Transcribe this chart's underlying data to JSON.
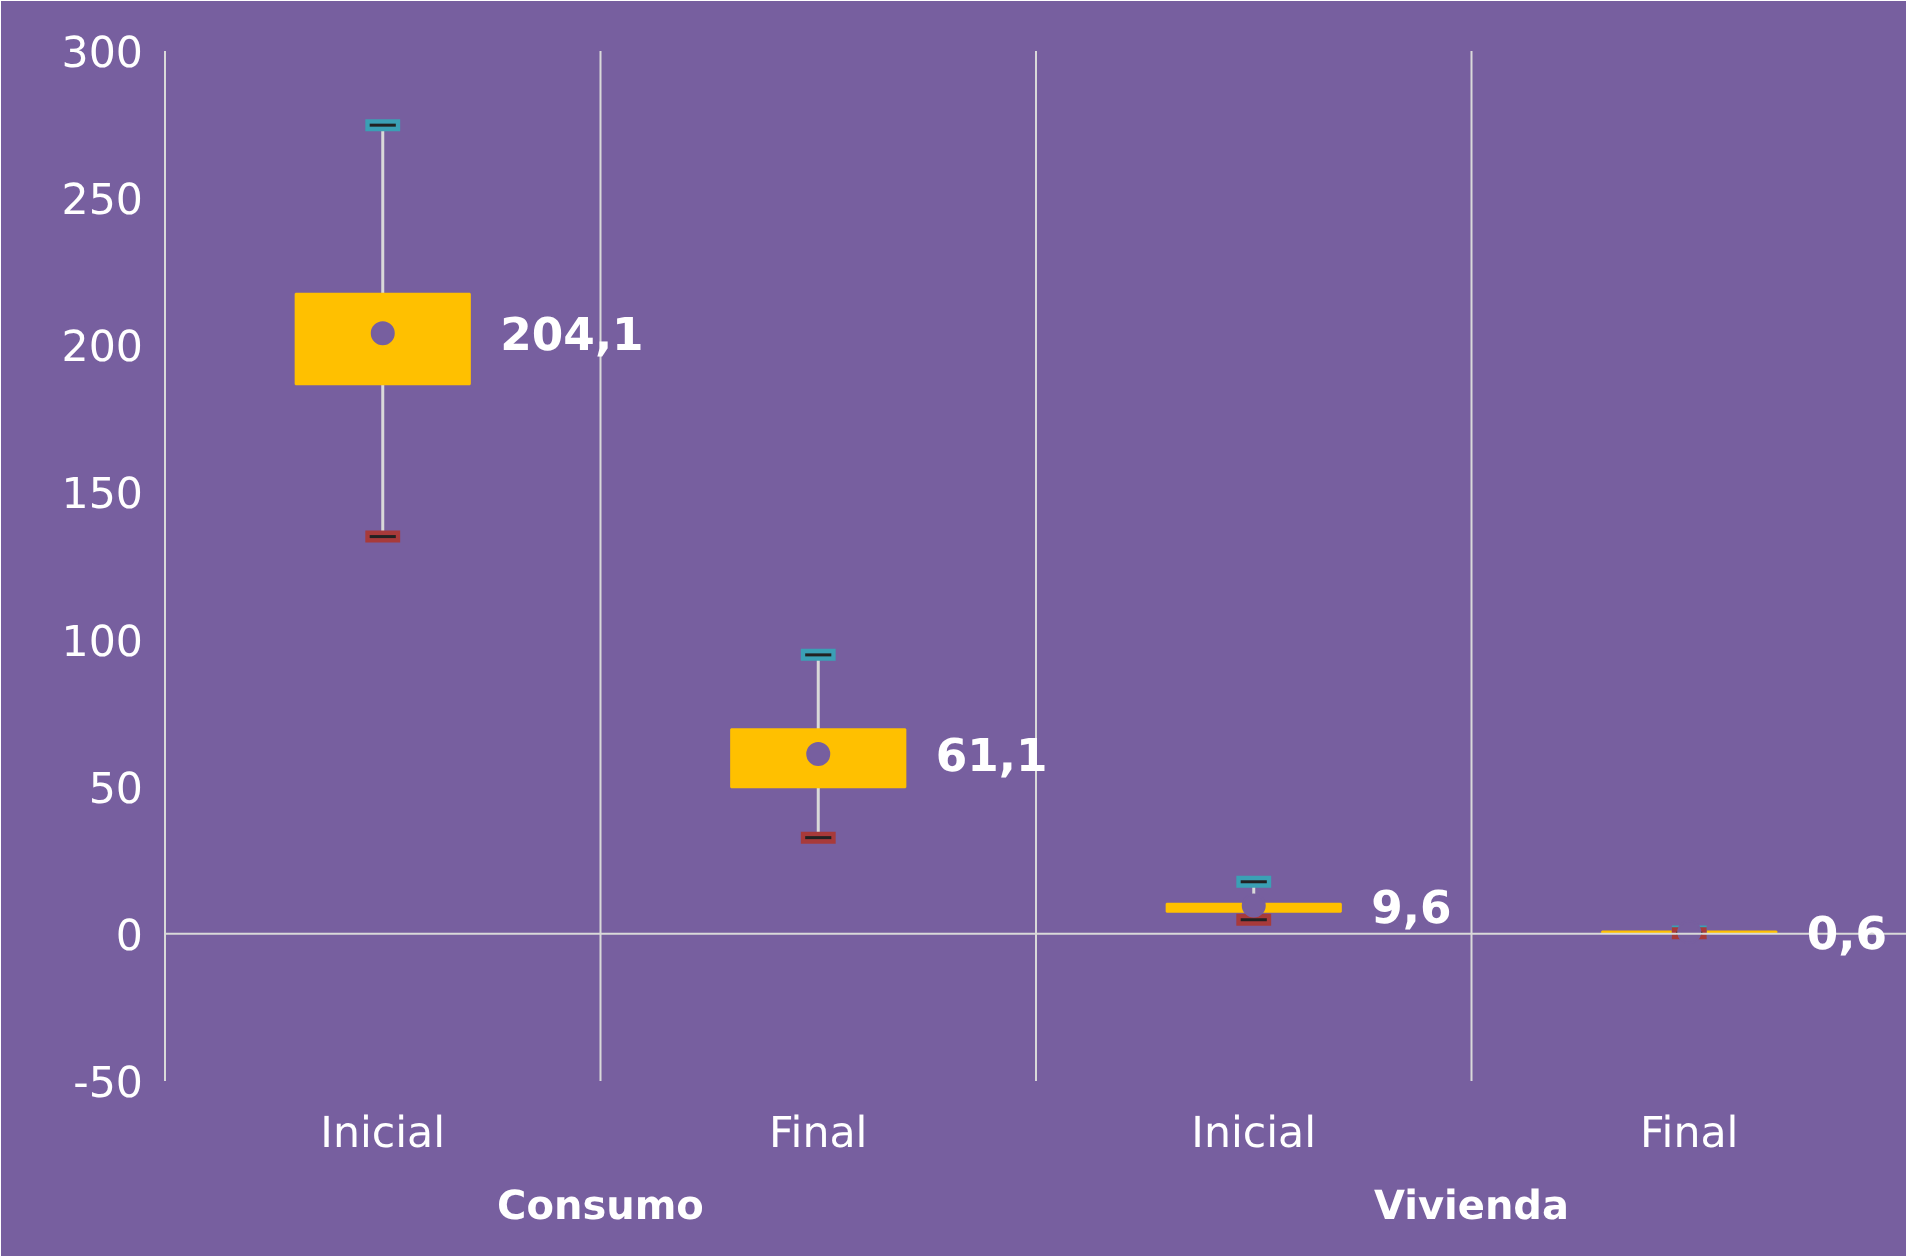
{
  "chart_data": {
    "type": "box",
    "categories": [
      "Inicial",
      "Final",
      "Inicial",
      "Final"
    ],
    "boxes": [
      {
        "low": 135,
        "q1": 186.8,
        "q3": 217.5,
        "high": 274.8,
        "mean": 204.1
      },
      {
        "low": 32.7,
        "q1": 49.8,
        "q3": 69.5,
        "high": 94.8,
        "mean": 61.1
      },
      {
        "low": 4.8,
        "q1": 7.5,
        "q3": 10.2,
        "high": 17.7,
        "mean": 9.6
      },
      {
        "low": 0.2,
        "q1": 0.4,
        "q3": 0.8,
        "high": 0.8,
        "mean": 0.6
      }
    ],
    "value_labels": [
      "204,1",
      "61,1",
      "9,6",
      "0,6"
    ],
    "color": "#ffc000",
    "ylim": [
      -50,
      300
    ],
    "yticks": [
      -50,
      0,
      50,
      100,
      150,
      200,
      250,
      300
    ],
    "ref_lines": [
      {
        "axis": "y",
        "value": 0,
        "color": "#d9d9d9"
      }
    ],
    "annotations": [
      "Consumo",
      "Vivienda"
    ]
  }
}
